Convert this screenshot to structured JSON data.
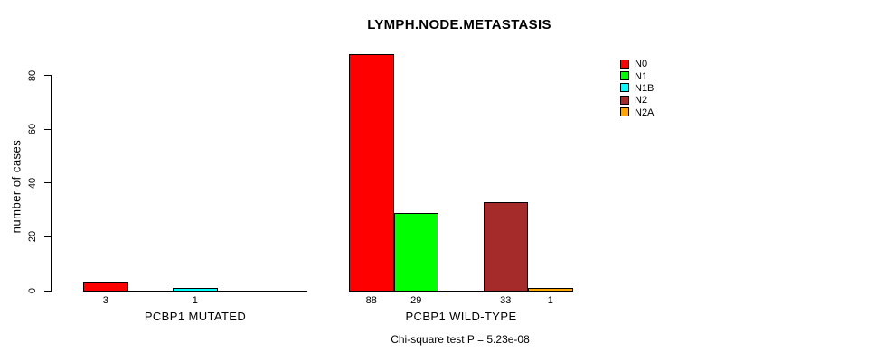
{
  "chart_data": {
    "type": "bar",
    "title": "LYMPH.NODE.METASTASIS",
    "ylabel": "number of cases",
    "xlabel": "",
    "ylim": [
      0,
      88
    ],
    "yticks": [
      0,
      20,
      40,
      60,
      80
    ],
    "grid": false,
    "legend_position": "top-right",
    "categories": [
      "PCBP1 MUTATED",
      "PCBP1 WILD-TYPE"
    ],
    "series": [
      {
        "name": "N0",
        "color": "#FF0000",
        "values": [
          3,
          88
        ]
      },
      {
        "name": "N1",
        "color": "#00FF00",
        "values": [
          0,
          29
        ]
      },
      {
        "name": "N1B",
        "color": "#00FFFF",
        "values": [
          1,
          0
        ]
      },
      {
        "name": "N2",
        "color": "#A52A2A",
        "values": [
          0,
          33
        ]
      },
      {
        "name": "N2A",
        "color": "#FFA500",
        "values": [
          0,
          1
        ]
      }
    ],
    "bar_value_labels": [
      {
        "group": "PCBP1 MUTATED",
        "labels": [
          "3",
          "",
          "1",
          "",
          ""
        ]
      },
      {
        "group": "PCBP1 WILD-TYPE",
        "labels": [
          "88",
          "29",
          "",
          "33",
          "1"
        ]
      }
    ],
    "annotation": "Chi-square test P = 5.23e-08"
  }
}
